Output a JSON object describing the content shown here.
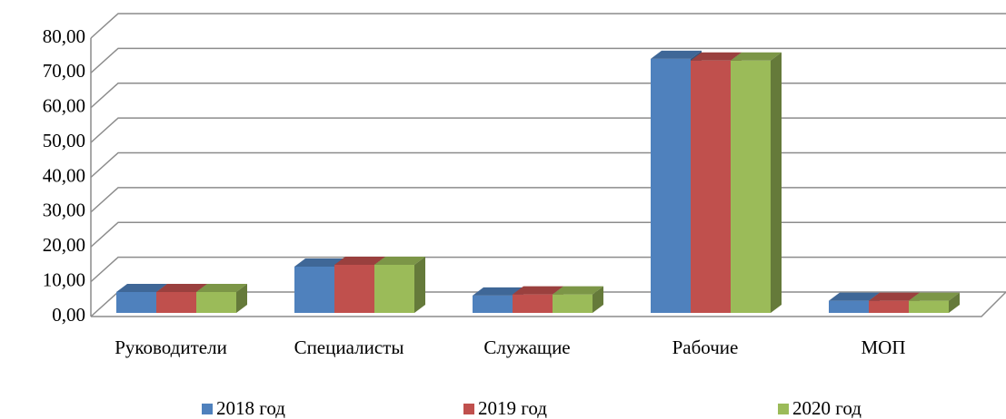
{
  "chart_data": {
    "type": "bar3d",
    "categories": [
      "Руководители",
      "Специалисты",
      "Служащие",
      "Рабочие",
      "МОП"
    ],
    "series": [
      {
        "name": "2018 год",
        "color": "#4f81bd",
        "values": [
          6,
          13.3,
          5,
          73,
          3.5
        ]
      },
      {
        "name": "2019 год",
        "color": "#c0504d",
        "values": [
          6,
          13.8,
          5.3,
          72.5,
          3.5
        ]
      },
      {
        "name": "2020 год",
        "color": "#9bbb59",
        "values": [
          6,
          13.8,
          5.3,
          72.5,
          3.5
        ]
      }
    ],
    "ylim": [
      0,
      80
    ],
    "yticks": [
      {
        "value": 0,
        "label": "0,00"
      },
      {
        "value": 10,
        "label": "10,00"
      },
      {
        "value": 20,
        "label": "20,00"
      },
      {
        "value": 30,
        "label": "30,00"
      },
      {
        "value": 40,
        "label": "40,00"
      },
      {
        "value": 50,
        "label": "50,00"
      },
      {
        "value": 60,
        "label": "60,00"
      },
      {
        "value": 70,
        "label": "70,00"
      },
      {
        "value": 80,
        "label": "80,00"
      }
    ],
    "grid": true,
    "legend": "bottom"
  }
}
